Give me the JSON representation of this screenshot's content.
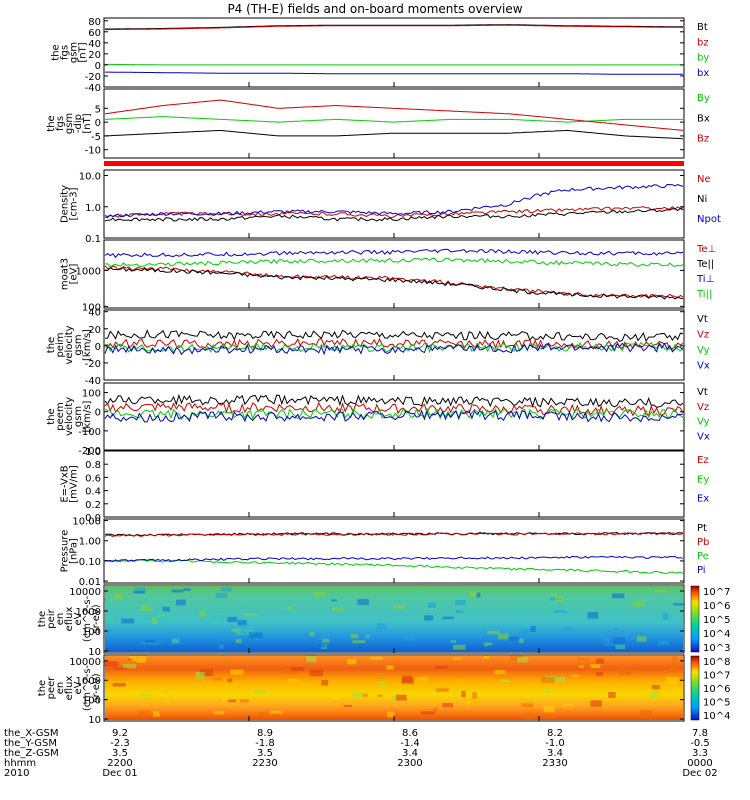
{
  "title": "P4 (TH-E) fields and on-board moments overview",
  "chart_data": [
    {
      "id": "p1",
      "type": "line",
      "ylabels": [
        "the",
        "fgs",
        "gsm",
        "[nT]"
      ],
      "yticks": [
        80,
        60,
        40,
        20,
        0,
        -20,
        -40
      ],
      "ylim": [
        -40,
        85
      ],
      "series": [
        {
          "name": "Bt",
          "color": "#000000",
          "values": [
            65,
            66,
            68,
            71,
            72,
            72,
            72,
            73,
            71,
            70,
            69
          ]
        },
        {
          "name": "bz",
          "color": "#cc0000",
          "values": [
            64,
            65,
            67,
            70,
            71,
            71,
            71,
            72,
            70,
            69,
            68
          ]
        },
        {
          "name": "by",
          "color": "#00cc00",
          "values": [
            1,
            0,
            0,
            0,
            0,
            0,
            0,
            0,
            0,
            0,
            0
          ]
        },
        {
          "name": "bx",
          "color": "#0000cc",
          "values": [
            -13,
            -14,
            -15,
            -15,
            -16,
            -16,
            -16,
            -16,
            -16,
            -17,
            -17
          ]
        }
      ]
    },
    {
      "id": "p2",
      "type": "line",
      "ylabels": [
        "the",
        "fgs",
        "gsm",
        "-dip",
        "[nT]"
      ],
      "yticks": [
        5,
        0,
        -5,
        -10
      ],
      "ylim": [
        -13,
        12
      ],
      "series": [
        {
          "name": "By",
          "color": "#00cc00",
          "values": [
            1,
            2,
            1,
            0,
            1,
            0,
            1,
            1,
            0,
            1,
            1
          ]
        },
        {
          "name": "Bx",
          "color": "#000000",
          "values": [
            -5,
            -4,
            -3,
            -5,
            -5,
            -4,
            -4,
            -4,
            -3,
            -5,
            -6
          ]
        },
        {
          "name": "Bz",
          "color": "#cc0000",
          "values": [
            3,
            6,
            8,
            5,
            6,
            5,
            4,
            3,
            1,
            -1,
            -3
          ]
        }
      ]
    },
    {
      "id": "p4",
      "type": "line",
      "ylabels": [
        "Density",
        "[cm-3]"
      ],
      "yticks": [
        "10.0",
        "1.0",
        "0.1"
      ],
      "ylog": true,
      "ylim": [
        0.1,
        15
      ],
      "series": [
        {
          "name": "Ne",
          "color": "#cc0000",
          "values": [
            0.5,
            0.6,
            0.6,
            0.6,
            0.6,
            0.5,
            0.6,
            0.7,
            0.8,
            0.9,
            0.9
          ]
        },
        {
          "name": "Ni",
          "color": "#000000",
          "values": [
            0.4,
            0.4,
            0.4,
            0.5,
            0.4,
            0.4,
            0.5,
            0.5,
            0.6,
            0.7,
            0.8
          ]
        },
        {
          "name": "Npot",
          "color": "#0000cc",
          "values": [
            0.5,
            0.6,
            0.6,
            0.7,
            0.7,
            0.6,
            0.7,
            1.2,
            3.5,
            4.2,
            4.8
          ]
        }
      ]
    },
    {
      "id": "p5",
      "type": "line",
      "ylabels": [
        "moat3",
        "[eV]"
      ],
      "yticks": [
        "1000",
        "100"
      ],
      "ylog": true,
      "ylim": [
        90,
        7000
      ],
      "series": [
        {
          "name": "Te⊥",
          "color": "#cc0000",
          "values": [
            1200,
            1100,
            900,
            700,
            650,
            600,
            450,
            300,
            220,
            200,
            190
          ]
        },
        {
          "name": "Te||",
          "color": "#000000",
          "values": [
            1100,
            1000,
            850,
            650,
            600,
            550,
            420,
            280,
            210,
            190,
            180
          ]
        },
        {
          "name": "Ti⊥",
          "color": "#0000cc",
          "values": [
            2600,
            2700,
            2800,
            3000,
            3200,
            3200,
            3500,
            3300,
            3100,
            3000,
            2900
          ]
        },
        {
          "name": "Ti||",
          "color": "#00cc00",
          "values": [
            1400,
            1500,
            1600,
            1800,
            1900,
            1900,
            2000,
            1800,
            1600,
            1500,
            1400
          ]
        }
      ]
    },
    {
      "id": "p6",
      "type": "line",
      "ylabels": [
        "the",
        "peim",
        "velocity",
        "gsm",
        "[km/s]"
      ],
      "yticks": [
        40,
        20,
        0,
        -20,
        -40
      ],
      "ylim": [
        -40,
        42
      ],
      "series": [
        {
          "name": "Vt",
          "color": "#000000",
          "values": [
            12,
            14,
            12,
            13,
            14,
            13,
            12,
            12,
            11,
            10,
            10
          ]
        },
        {
          "name": "Vz",
          "color": "#cc0000",
          "values": [
            2,
            3,
            2,
            3,
            4,
            3,
            2,
            2,
            2,
            1,
            1
          ]
        },
        {
          "name": "Vy",
          "color": "#00cc00",
          "values": [
            -2,
            -3,
            -2,
            -2,
            -3,
            -2,
            -2,
            -2,
            -1,
            -1,
            -1
          ]
        },
        {
          "name": "Vx",
          "color": "#0000cc",
          "values": [
            -4,
            -6,
            -5,
            -4,
            -5,
            -4,
            -3,
            -3,
            -2,
            -2,
            -2
          ]
        }
      ]
    },
    {
      "id": "p7",
      "type": "line",
      "ylabels": [
        "the",
        "peem",
        "velocity",
        "gsm",
        "[km/s]"
      ],
      "yticks": [
        100,
        0,
        -100,
        -200
      ],
      "ylim": [
        -200,
        150
      ],
      "series": [
        {
          "name": "Vt",
          "color": "#000000",
          "values": [
            60,
            65,
            60,
            62,
            60,
            55,
            55,
            50,
            45,
            45,
            45
          ]
        },
        {
          "name": "Vz",
          "color": "#cc0000",
          "values": [
            20,
            25,
            20,
            22,
            20,
            15,
            15,
            10,
            10,
            5,
            5
          ]
        },
        {
          "name": "Vy",
          "color": "#00cc00",
          "values": [
            -10,
            -15,
            -10,
            -12,
            -10,
            -10,
            -10,
            -10,
            -10,
            -10,
            -10
          ]
        },
        {
          "name": "Vx",
          "color": "#0000cc",
          "values": [
            -25,
            -30,
            -25,
            -25,
            -25,
            -20,
            -20,
            -20,
            -25,
            -30,
            -30
          ]
        }
      ]
    },
    {
      "id": "p8",
      "type": "line",
      "ylabels": [
        "E=-VxB",
        "[mV/m]"
      ],
      "yticks": [
        "1.0",
        "0.8",
        "0.6",
        "0.4",
        "0.2",
        "0.0"
      ],
      "ylim": [
        0,
        1
      ],
      "series": [
        {
          "name": "Ez",
          "color": "#cc0000",
          "values": []
        },
        {
          "name": "Ey",
          "color": "#00cc00",
          "values": []
        },
        {
          "name": "Ex",
          "color": "#0000cc",
          "values": []
        }
      ]
    },
    {
      "id": "p9",
      "type": "line",
      "ylabels": [
        "Pressure",
        "[nPa]"
      ],
      "yticks": [
        "10.00",
        "1.00",
        "0.10",
        "0.01"
      ],
      "ylog": true,
      "ylim": [
        0.008,
        12
      ],
      "series": [
        {
          "name": "Pt",
          "color": "#000000",
          "values": [
            1.9,
            2.0,
            2.1,
            2.2,
            2.2,
            2.2,
            2.3,
            2.3,
            2.3,
            2.3,
            2.3
          ]
        },
        {
          "name": "Pb",
          "color": "#cc0000",
          "values": [
            1.8,
            1.9,
            2.0,
            2.1,
            2.1,
            2.1,
            2.2,
            2.2,
            2.2,
            2.2,
            2.2
          ]
        },
        {
          "name": "Pe",
          "color": "#00cc00",
          "values": [
            0.1,
            0.1,
            0.09,
            0.08,
            0.07,
            0.06,
            0.05,
            0.04,
            0.035,
            0.03,
            0.025
          ]
        },
        {
          "name": "Pi",
          "color": "#0000cc",
          "values": [
            0.1,
            0.11,
            0.12,
            0.13,
            0.13,
            0.13,
            0.14,
            0.14,
            0.15,
            0.15,
            0.15
          ]
        }
      ]
    },
    {
      "id": "p10",
      "type": "heatmap",
      "ylabels": [
        "the",
        "peir",
        "en",
        "eflux",
        "eV",
        "(cm^2-s-",
        "sr-eV)"
      ],
      "yticks": [
        "10000",
        "1000",
        "100",
        "10"
      ],
      "colorbar": {
        "ticks": [
          "10^7",
          "10^6",
          "10^5",
          "10^4",
          "10^3"
        ]
      }
    },
    {
      "id": "p11",
      "type": "heatmap",
      "ylabels": [
        "the",
        "peer",
        "en",
        "eflux",
        "eV",
        "(cm^2-s-",
        "sr-eV)"
      ],
      "yticks": [
        "10000",
        "1000",
        "100",
        "10"
      ],
      "colorbar": {
        "ticks": [
          "10^8",
          "10^7",
          "10^6",
          "10^5",
          "10^4"
        ]
      }
    }
  ],
  "xaxis": {
    "row_labels": [
      "the_X-GSM",
      "the_Y-GSM",
      "the_Z-GSM",
      "hhmm",
      "2010"
    ],
    "columns": [
      [
        "9.2",
        "-2.3",
        "3.5",
        "2200",
        "Dec 01"
      ],
      [
        "8.9",
        "-1.8",
        "3.5",
        "2230",
        ""
      ],
      [
        "8.6",
        "-1.4",
        "3.4",
        "2300",
        ""
      ],
      [
        "8.2",
        "-1.0",
        "3.4",
        "2330",
        ""
      ],
      [
        "7.8",
        "-0.5",
        "3.3",
        "0000",
        "Dec 02"
      ]
    ]
  }
}
